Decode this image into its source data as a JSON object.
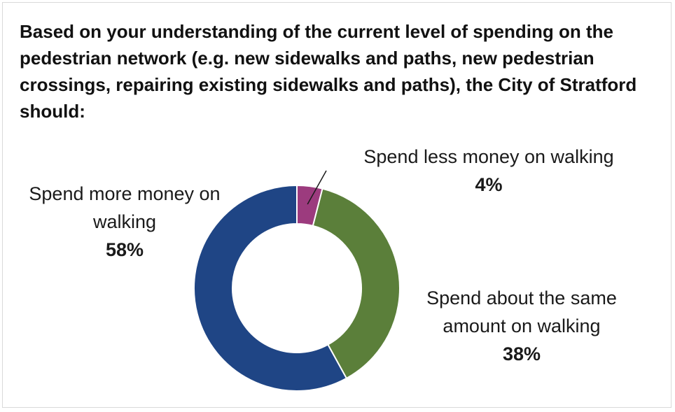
{
  "chart_data": {
    "type": "pie",
    "variant": "donut",
    "title": "Based on your understanding of the current level of spending on the pedestrian network (e.g. new sidewalks and paths, new pedestrian crossings, repairing existing sidewalks and paths), the City of Stratford should:",
    "categories": [
      "Spend less money on walking",
      "Spend about the same amount on walking",
      "Spend more money on walking"
    ],
    "values": [
      4,
      38,
      58
    ],
    "percent_labels": [
      "4%",
      "38%",
      "58%"
    ],
    "colors": [
      "#9c3b7e",
      "#5b7f3a",
      "#1f4585"
    ],
    "legend": "none"
  }
}
